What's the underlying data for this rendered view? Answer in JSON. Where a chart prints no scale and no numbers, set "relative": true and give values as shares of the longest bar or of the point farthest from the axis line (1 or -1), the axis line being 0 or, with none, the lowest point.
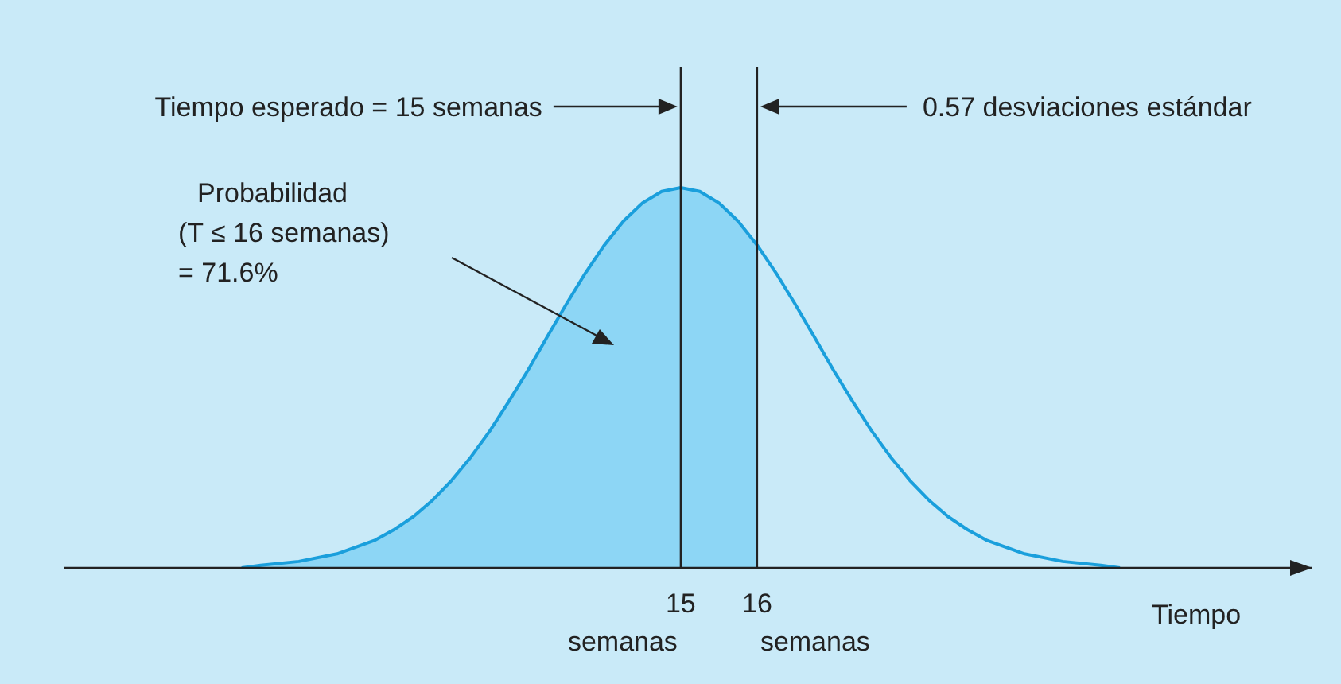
{
  "chart_data": {
    "type": "area",
    "relative": true,
    "xlabel": "Tiempo",
    "xlim": [
      6.92,
      23.27
    ],
    "xticks": [
      15,
      16
    ],
    "grid": false,
    "series": [
      {
        "type": "area",
        "color": "#8dd6f5",
        "x": [
          9.25,
          9.5,
          10,
          10.5,
          11,
          11.25,
          11.5,
          11.75,
          12,
          12.25,
          12.5,
          12.75,
          13,
          13.25,
          13.5,
          13.75,
          14,
          14.25,
          14.5,
          14.75,
          15,
          15.25,
          15.5,
          15.75,
          16
        ],
        "values": [
          0,
          0.007,
          0.017,
          0.037,
          0.073,
          0.101,
          0.135,
          0.178,
          0.23,
          0.291,
          0.36,
          0.438,
          0.52,
          0.607,
          0.693,
          0.775,
          0.849,
          0.912,
          0.96,
          0.99,
          1,
          0.99,
          0.96,
          0.912,
          0.849
        ]
      },
      {
        "type": "line",
        "color": "#1a9fdc",
        "x": [
          9.25,
          9.5,
          10,
          10.5,
          11,
          11.25,
          11.5,
          11.75,
          12,
          12.25,
          12.5,
          12.75,
          13,
          13.25,
          13.5,
          13.75,
          14,
          14.25,
          14.5,
          14.75,
          15,
          15.25,
          15.5,
          15.75,
          16,
          16.25,
          16.5,
          16.75,
          17,
          17.25,
          17.5,
          17.75,
          18,
          18.25,
          18.5,
          18.75,
          19,
          19.5,
          20,
          20.5,
          20.75
        ],
        "values": [
          0,
          0.007,
          0.017,
          0.037,
          0.073,
          0.101,
          0.135,
          0.178,
          0.23,
          0.291,
          0.36,
          0.438,
          0.52,
          0.607,
          0.693,
          0.775,
          0.849,
          0.912,
          0.96,
          0.99,
          1,
          0.99,
          0.96,
          0.912,
          0.849,
          0.775,
          0.693,
          0.607,
          0.52,
          0.438,
          0.36,
          0.291,
          0.23,
          0.178,
          0.135,
          0.101,
          0.073,
          0.037,
          0.017,
          0.007,
          0
        ]
      }
    ],
    "ref_lines": [
      {
        "axis": "x",
        "value": 15
      },
      {
        "axis": "x",
        "value": 16
      }
    ],
    "annotations": [
      "Tiempo esperado = 15 semanas",
      "0.57 desviaciones estándar",
      "Probabilidad\n(T ≤ 16 semanas)\n= 71.6%",
      "semanas",
      "semanas"
    ]
  }
}
